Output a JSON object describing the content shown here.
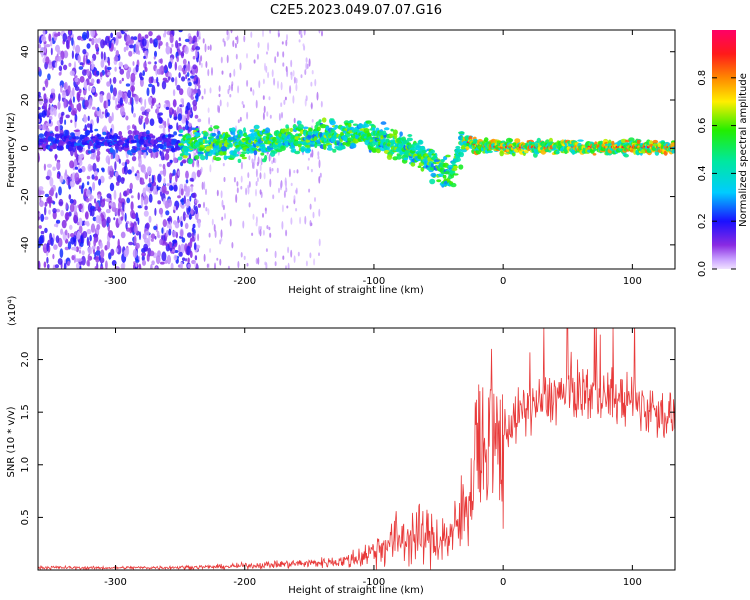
{
  "title": "C2E5.2023.049.07.07.G16",
  "colorbar": {
    "label": "Normalized spectral amplitude",
    "ticks": [
      "0.0",
      "0.2",
      "0.4",
      "0.6",
      "0.8"
    ],
    "tick_values": [
      0.0,
      0.2,
      0.4,
      0.6,
      0.8
    ]
  },
  "chart_data": [
    {
      "type": "heatmap",
      "xlabel": "Height of straight line (km)",
      "ylabel": "Frequency (Hz)",
      "xlim": [
        -360,
        133
      ],
      "ylim": [
        -50,
        49
      ],
      "xticks": [
        -300,
        -200,
        -100,
        0,
        100
      ],
      "xtick_labels": [
        "-300",
        "-200",
        "-100",
        "0",
        "100"
      ],
      "yticks": [
        -40,
        -20,
        0,
        20,
        40
      ],
      "ytick_labels": [
        "-40",
        "-20",
        "0",
        "20",
        "40"
      ],
      "colormap": "rainbow",
      "value_range": [
        0,
        1
      ],
      "ridge": {
        "description": "dominant spectral ridge (frequency in Hz vs height in km)",
        "x": [
          -360,
          -300,
          -250,
          -200,
          -150,
          -120,
          -100,
          -80,
          -60,
          -50,
          -45,
          -40,
          -35,
          -30,
          -20,
          0,
          50,
          100,
          133
        ],
        "y": [
          3,
          3,
          2,
          2,
          4,
          6,
          5,
          1,
          -4,
          -8,
          -10,
          -12,
          -2,
          3,
          1,
          0.5,
          0.5,
          0.5,
          0.5
        ]
      }
    },
    {
      "type": "line",
      "xlabel": "Height of straight line (km)",
      "ylabel": "SNR (10 * v/v)",
      "y_multiplier": "(x10⁴)",
      "xlim": [
        -360,
        133
      ],
      "ylim": [
        0,
        23000
      ],
      "xticks": [
        -300,
        -200,
        -100,
        0,
        100
      ],
      "xtick_labels": [
        "-300",
        "-200",
        "-100",
        "0",
        "100"
      ],
      "yticks": [
        5000,
        10000,
        15000,
        20000
      ],
      "ytick_labels": [
        "0.5",
        "1.0",
        "1.5",
        "2.0"
      ],
      "series": [
        {
          "color": "#e83a3a",
          "x": [
            -360,
            -320,
            -280,
            -250,
            -220,
            -200,
            -180,
            -160,
            -140,
            -120,
            -110,
            -100,
            -90,
            -80,
            -70,
            -60,
            -50,
            -40,
            -35,
            -30,
            -25,
            -20,
            -15,
            -10,
            -5,
            0,
            10,
            20,
            30,
            40,
            50,
            60,
            70,
            80,
            90,
            100,
            110,
            120,
            133
          ],
          "values": [
            250,
            200,
            220,
            250,
            300,
            400,
            500,
            600,
            700,
            900,
            1300,
            1800,
            2500,
            3000,
            3200,
            3100,
            3000,
            3200,
            4000,
            6000,
            7500,
            9000,
            10000,
            10500,
            11500,
            13000,
            14500,
            15500,
            16000,
            16500,
            16800,
            17000,
            16800,
            16500,
            16200,
            16000,
            15500,
            15000,
            14500
          ]
        }
      ]
    }
  ]
}
